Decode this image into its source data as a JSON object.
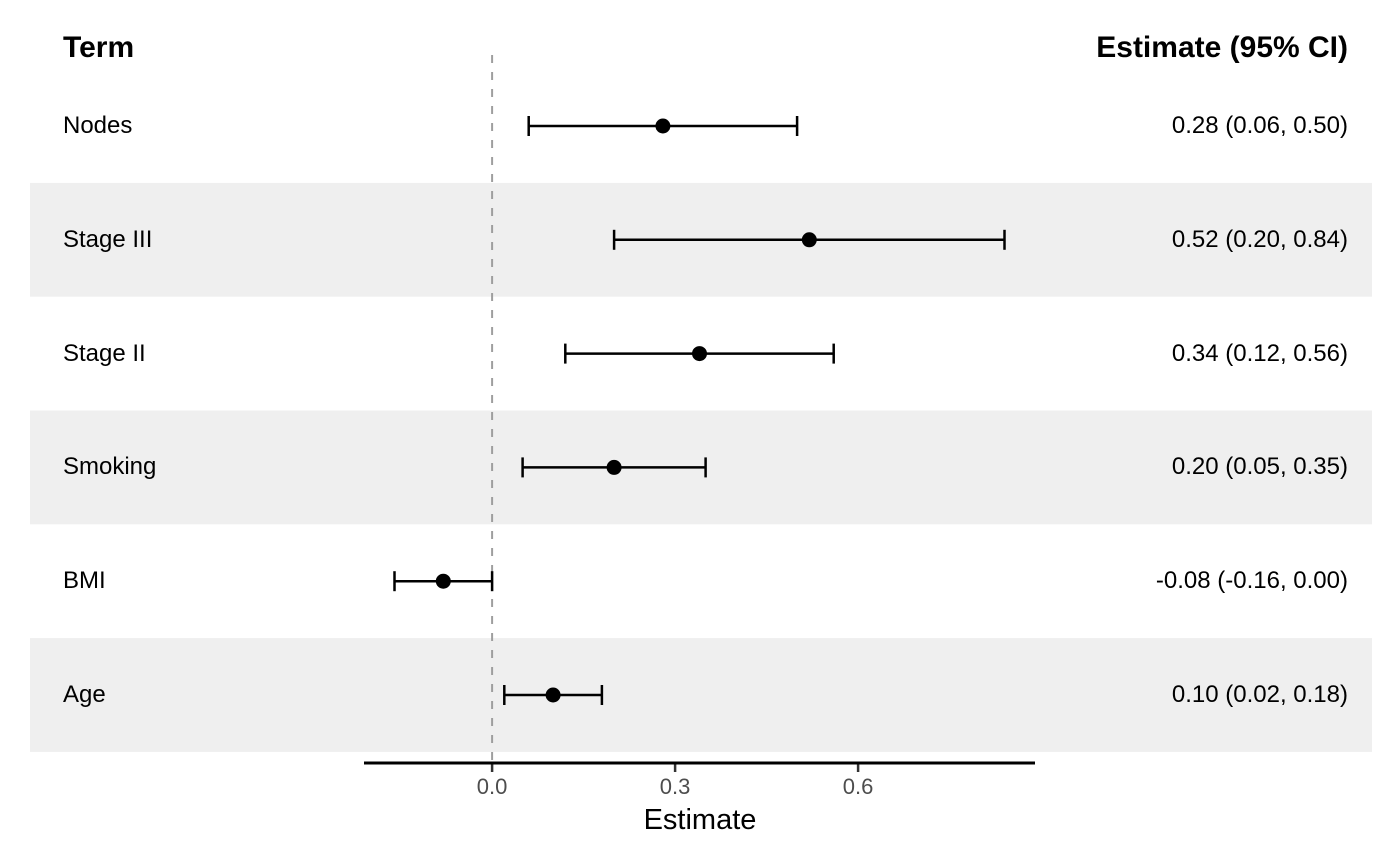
{
  "header": {
    "term": "Term",
    "estimate": "Estimate (95% CI)"
  },
  "axis": {
    "title": "Estimate",
    "tick_labels": [
      "0.0",
      "0.3",
      "0.6"
    ],
    "tick_values": [
      0.0,
      0.3,
      0.6
    ]
  },
  "colors": {
    "background": "#ffffff",
    "stripe": "#EFEFEF",
    "reference_line": "#9E9E9E",
    "axis_line": "#000000",
    "tick_mark": "#333333",
    "tick_label": "#4d4d4d",
    "marker": "#000000",
    "ci_line": "#000000",
    "text": "#000000"
  },
  "chart_data": {
    "type": "forest",
    "xlabel": "Estimate",
    "xlim": [
      -0.21,
      0.89
    ],
    "x_ticks": [
      0.0,
      0.3,
      0.6
    ],
    "vline": 0.0,
    "legend": "none",
    "grid": "off",
    "striped_rows": [
      1,
      3,
      5
    ],
    "rows": [
      {
        "term": "Nodes",
        "estimate": 0.28,
        "ci_low": 0.06,
        "ci_high": 0.5,
        "label": "0.28 (0.06, 0.50)"
      },
      {
        "term": "Stage III",
        "estimate": 0.52,
        "ci_low": 0.2,
        "ci_high": 0.84,
        "label": "0.52 (0.20, 0.84)"
      },
      {
        "term": "Stage II",
        "estimate": 0.34,
        "ci_low": 0.12,
        "ci_high": 0.56,
        "label": "0.34 (0.12, 0.56)"
      },
      {
        "term": "Smoking",
        "estimate": 0.2,
        "ci_low": 0.05,
        "ci_high": 0.35,
        "label": "0.20 (0.05, 0.35)"
      },
      {
        "term": "BMI",
        "estimate": -0.08,
        "ci_low": -0.16,
        "ci_high": 0.0,
        "label": "-0.08 (-0.16, 0.00)"
      },
      {
        "term": "Age",
        "estimate": 0.1,
        "ci_low": 0.02,
        "ci_high": 0.18,
        "label": "0.10 (0.02, 0.18)"
      }
    ]
  }
}
